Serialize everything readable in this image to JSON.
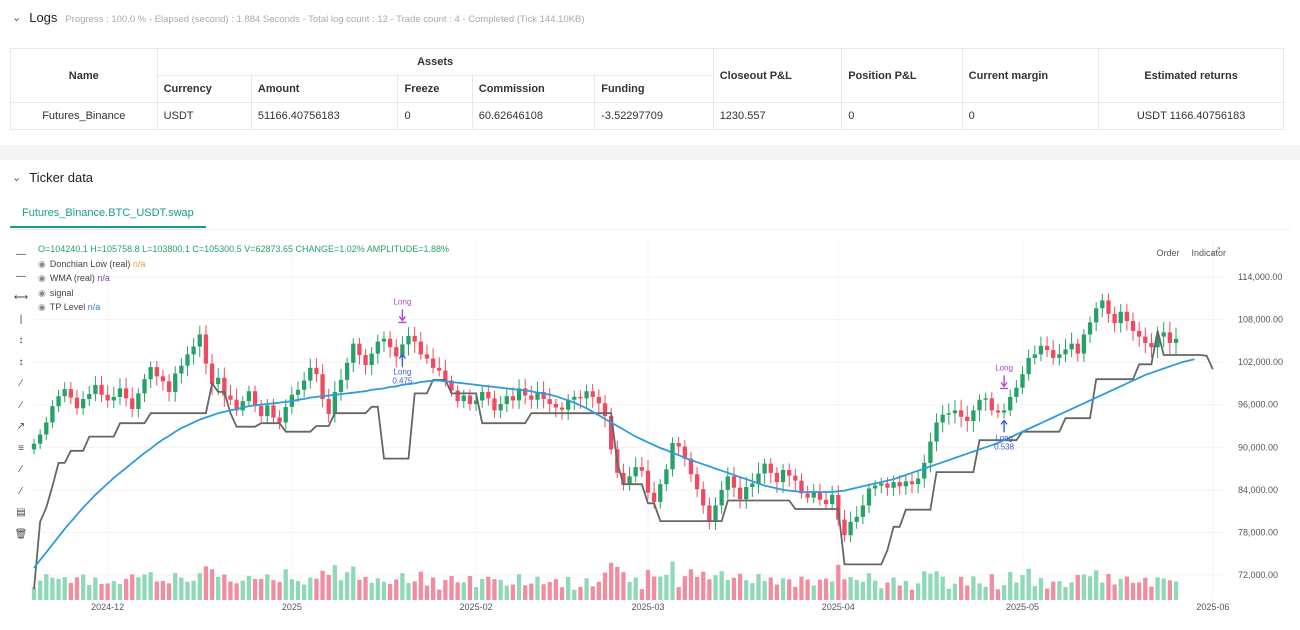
{
  "logs": {
    "title": "Logs",
    "progress_text": "Progress : 100.0 % - Elapsed (second) : 1.884  Seconds - Total log count : 12 - Trade count : 4 - Completed (Tick 144.10KB)",
    "table": {
      "headers": {
        "name": "Name",
        "assets": "Assets",
        "closeout": "Closeout P&L",
        "position": "Position P&L",
        "margin": "Current margin",
        "returns": "Estimated returns"
      },
      "subheaders": [
        "Currency",
        "Amount",
        "Freeze",
        "Commission",
        "Funding"
      ],
      "row": [
        "Futures_Binance",
        "USDT",
        "51166.40756183",
        "0",
        "60.62646108",
        "-3.52297709",
        "1230.557",
        "0",
        "0",
        "USDT 1166.40756183"
      ]
    }
  },
  "ticker": {
    "title": "Ticker data",
    "tab": "Futures_Binance.BTC_USDT.swap",
    "ohlc": "O=104240.1 H=105758.8 L=103800.1 C=105300.5 V=62873.65 CHANGE=1.02% AMPLITUDE=1.88%",
    "legend": [
      {
        "label": "Donchian Low (real)",
        "value": "n/a",
        "color": "#f29c38"
      },
      {
        "label": "WMA (real)",
        "value": "n/a",
        "color": "#8e44ad"
      },
      {
        "label": "signal",
        "value": "",
        "color": ""
      },
      {
        "label": "TP Level",
        "value": "n/a",
        "color": "#2e7ad6"
      }
    ],
    "buttons": {
      "order": "Order",
      "indicator": "Indicator"
    }
  },
  "chart_data": {
    "type": "candlestick",
    "y_ticks": [
      "114,000.00",
      "108,000.00",
      "102,000.00",
      "96,000.00",
      "90,000.00",
      "84,000.00",
      "78,000.00",
      "72,000.00"
    ],
    "y_tick_values": [
      114000,
      108000,
      102000,
      96000,
      90000,
      84000,
      78000,
      72000
    ],
    "x_ticks": [
      "2024-12",
      "2025",
      "2025-02",
      "2025-03",
      "2025-04",
      "2025-05",
      "2025-06"
    ],
    "x_tick_index": [
      12,
      42,
      72,
      100,
      131,
      161,
      192
    ],
    "price_close": [
      90500,
      91800,
      93500,
      95800,
      97200,
      98200,
      97000,
      95500,
      96800,
      97500,
      98800,
      97400,
      96600,
      97100,
      98300,
      96900,
      95400,
      97600,
      99600,
      101300,
      100000,
      99300,
      97800,
      100400,
      101500,
      103100,
      104200,
      105900,
      101800,
      98900,
      99800,
      97300,
      96700,
      95200,
      96500,
      97900,
      95800,
      94400,
      95900,
      94200,
      93500,
      95700,
      97400,
      98100,
      99400,
      101200,
      100300,
      96800,
      94700,
      97800,
      99500,
      101900,
      104600,
      103000,
      101600,
      103200,
      104900,
      105300,
      104100,
      102800,
      104500,
      105700,
      104900,
      103100,
      102500,
      101200,
      100800,
      99400,
      98000,
      96500,
      97300,
      96100,
      96600,
      97800,
      96900,
      95200,
      96100,
      97200,
      96600,
      98300,
      97300,
      96700,
      97800,
      96800,
      96100,
      95600,
      95300,
      96700,
      97100,
      96900,
      97900,
      97100,
      96200,
      94400,
      89700,
      86400,
      84700,
      85900,
      87200,
      86700,
      83600,
      82300,
      84800,
      86900,
      90600,
      90100,
      88400,
      86200,
      84100,
      81800,
      79600,
      81800,
      84000,
      85900,
      84300,
      82700,
      84400,
      84900,
      86300,
      87700,
      86400,
      85100,
      86800,
      86000,
      85300,
      83500,
      82900,
      83700,
      82600,
      82000,
      83300,
      79800,
      77600,
      79500,
      80200,
      81800,
      84200,
      84600,
      84900,
      84300,
      85100,
      84500,
      85200,
      84800,
      85600,
      87800,
      90800,
      93500,
      94600,
      94800,
      95200,
      94300,
      93700,
      95200,
      96700,
      96900,
      95200,
      94900,
      95200,
      97100,
      98400,
      100300,
      102600,
      103100,
      104300,
      103700,
      102600,
      103100,
      103800,
      104600,
      103200,
      105900,
      107600,
      109600,
      110700,
      108800,
      107500,
      109100,
      107800,
      106400,
      105600,
      104700,
      104100,
      105600,
      106200,
      104700,
      105300
    ],
    "donchian_low": [
      70000,
      79500,
      81500,
      84500,
      87800,
      87800,
      89500,
      89500,
      89500,
      91500,
      91500,
      91500,
      91500,
      91500,
      93400,
      93400,
      93400,
      93400,
      93400,
      94800,
      94800,
      94800,
      94800,
      94800,
      94800,
      94800,
      94800,
      94800,
      94800,
      99000,
      97800,
      97800,
      94800,
      92900,
      92900,
      92900,
      92900,
      93400,
      93400,
      93400,
      93400,
      92200,
      92200,
      92200,
      92200,
      92200,
      93000,
      93000,
      93000,
      94800,
      94800,
      94800,
      94800,
      94800,
      94800,
      95700,
      95700,
      88400,
      88400,
      88400,
      88400,
      88400,
      97600,
      97600,
      97600,
      99500,
      99500,
      99500,
      97600,
      97600,
      97600,
      97600,
      97600,
      93400,
      93400,
      93400,
      93400,
      93400,
      93400,
      93400,
      93400,
      94800,
      94800,
      94800,
      94800,
      94800,
      94800,
      94800,
      94800,
      94800,
      94800,
      94800,
      94800,
      94800,
      94800,
      87800,
      84800,
      84800,
      84800,
      84800,
      82100,
      82100,
      79600,
      79600,
      79600,
      79600,
      79600,
      79600,
      79600,
      79600,
      79600,
      79600,
      79600,
      82500,
      82500,
      82500,
      82500,
      82500,
      82500,
      82500,
      82500,
      82500,
      82500,
      82500,
      81300,
      81300,
      81300,
      81300,
      81300,
      81300,
      81300,
      81300,
      73500,
      73500,
      73500,
      73500,
      73500,
      73500,
      73500,
      75500,
      78800,
      78800,
      81200,
      81200,
      81200,
      81200,
      81200,
      86500,
      86500,
      86500,
      86500,
      86500,
      86500,
      86500,
      91000,
      91000,
      91000,
      91000,
      91000,
      91000,
      91000,
      92200,
      92200,
      92200,
      92200,
      92200,
      92200,
      92200,
      94100,
      94100,
      94100,
      94100,
      94100,
      99600,
      99600,
      99600,
      99600,
      99600,
      99600,
      99600,
      101700,
      101700,
      101700,
      106400,
      103000,
      103000,
      103000,
      103000,
      103000,
      103000,
      103000,
      102900,
      101000
    ],
    "wma": [
      73000,
      74100,
      75200,
      76300,
      77400,
      78500,
      79500,
      80500,
      81500,
      82400,
      83300,
      84100,
      84900,
      85700,
      86400,
      87100,
      87800,
      88500,
      89200,
      89800,
      90500,
      91100,
      91600,
      92200,
      92700,
      93100,
      93500,
      93900,
      94200,
      94500,
      94800,
      95000,
      95200,
      95400,
      95600,
      95800,
      95900,
      96000,
      96100,
      96200,
      96300,
      96400,
      96500,
      96700,
      96800,
      97000,
      97100,
      97200,
      97300,
      97400,
      97500,
      97600,
      97700,
      97800,
      97900,
      98100,
      98200,
      98300,
      98500,
      98600,
      98800,
      98900,
      99000,
      99200,
      99300,
      99400,
      99400,
      99300,
      99200,
      99100,
      99000,
      98900,
      98800,
      98700,
      98600,
      98500,
      98400,
      98300,
      98200,
      98100,
      98000,
      97900,
      97700,
      97600,
      97400,
      97200,
      96900,
      96600,
      96300,
      95900,
      95500,
      95000,
      94500,
      94000,
      93500,
      93000,
      92500,
      92000,
      91500,
      91100,
      90700,
      90300,
      89900,
      89600,
      89200,
      88900,
      88500,
      88200,
      87900,
      87600,
      87300,
      87000,
      86700,
      86400,
      86100,
      85800,
      85500,
      85200,
      84900,
      84600,
      84400,
      84200,
      84000,
      83900,
      83800,
      83700,
      83700,
      83700,
      83700,
      83700,
      83700,
      83800,
      83900,
      84100,
      84300,
      84500,
      84700,
      84900,
      85100,
      85300,
      85500,
      85800,
      86100,
      86400,
      86700,
      87000,
      87300,
      87600,
      87900,
      88200,
      88500,
      88800,
      89100,
      89400,
      89700,
      90000,
      90300,
      90600,
      91000,
      91400,
      91800,
      92200,
      92600,
      93000,
      93400,
      93800,
      94200,
      94600,
      95000,
      95400,
      95800,
      96200,
      96600,
      97000,
      97400,
      97800,
      98200,
      98600,
      99000,
      99400,
      99800,
      100200,
      100500,
      100800,
      101100,
      101400,
      101700,
      102000,
      102200,
      102400
    ],
    "signals": [
      {
        "label": "Long",
        "size": "0.475",
        "index": 60
      },
      {
        "label": "Long",
        "size": "0.538",
        "index": 158
      }
    ]
  }
}
